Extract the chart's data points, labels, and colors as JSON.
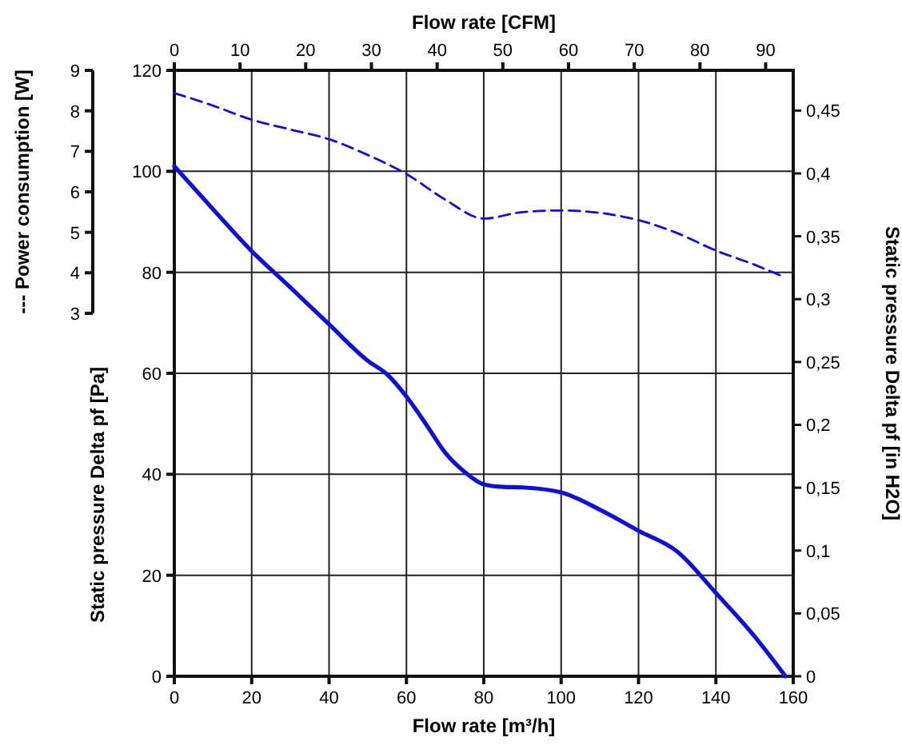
{
  "chart_data": {
    "type": "line",
    "xlabel": "Flow rate [m³/h]",
    "x2label": "Flow rate [CFM]",
    "ylabel": "Static pressure Delta pf [Pa]",
    "y2label": "Static pressure Delta pf [in H2O]",
    "y3label": "--- Power consumption [W]",
    "xlim": [
      0,
      160
    ],
    "xticks": [
      0,
      20,
      40,
      60,
      80,
      100,
      120,
      140,
      160
    ],
    "x2lim": [
      0,
      94.2
    ],
    "x2ticks": [
      0,
      10,
      20,
      30,
      40,
      50,
      60,
      70,
      80,
      90
    ],
    "ylim": [
      0,
      120
    ],
    "yticks": [
      0,
      20,
      40,
      60,
      80,
      100,
      120
    ],
    "y2lim": [
      0,
      0.482
    ],
    "y2ticks": [
      0,
      {
        "value": 0.05,
        "label": "0,05"
      },
      {
        "value": 0.1,
        "label": "0,1"
      },
      {
        "value": 0.15,
        "label": "0,15"
      },
      {
        "value": 0.2,
        "label": "0,2"
      },
      {
        "value": 0.25,
        "label": "0,25"
      },
      {
        "value": 0.3,
        "label": "0,3"
      },
      {
        "value": 0.35,
        "label": "0,35"
      },
      {
        "value": 0.4,
        "label": "0,4"
      },
      {
        "value": 0.45,
        "label": "0,45"
      }
    ],
    "y3lim": [
      3,
      9
    ],
    "y3ticks": [
      3,
      4,
      5,
      6,
      7,
      8,
      9
    ],
    "grid": true,
    "marker": "none",
    "series": [
      {
        "color": "#1010d0",
        "line_style": "solid",
        "axis": "y",
        "x": [
          0,
          10,
          20,
          30,
          40,
          50,
          55,
          60,
          65,
          70,
          75,
          80,
          85,
          90,
          100,
          110,
          120,
          130,
          140,
          150,
          158
        ],
        "values": [
          101,
          92.5,
          84.2,
          77,
          69.7,
          62.5,
          59.8,
          55.4,
          50,
          44.3,
          40.5,
          38,
          37.5,
          37.4,
          36.4,
          33,
          28.8,
          24.7,
          16.5,
          7.9,
          0
        ]
      },
      {
        "color": "#1010d0",
        "line_style": "dashed",
        "axis": "y3",
        "x": [
          0,
          10,
          20,
          30,
          40,
          50,
          60,
          70,
          80,
          90,
          100,
          110,
          120,
          130,
          140,
          150,
          158
        ],
        "values": [
          8.44,
          8.13,
          7.78,
          7.54,
          7.3,
          6.91,
          6.44,
          5.81,
          5.34,
          5.5,
          5.54,
          5.48,
          5.3,
          4.98,
          4.55,
          4.2,
          3.88
        ]
      }
    ]
  }
}
